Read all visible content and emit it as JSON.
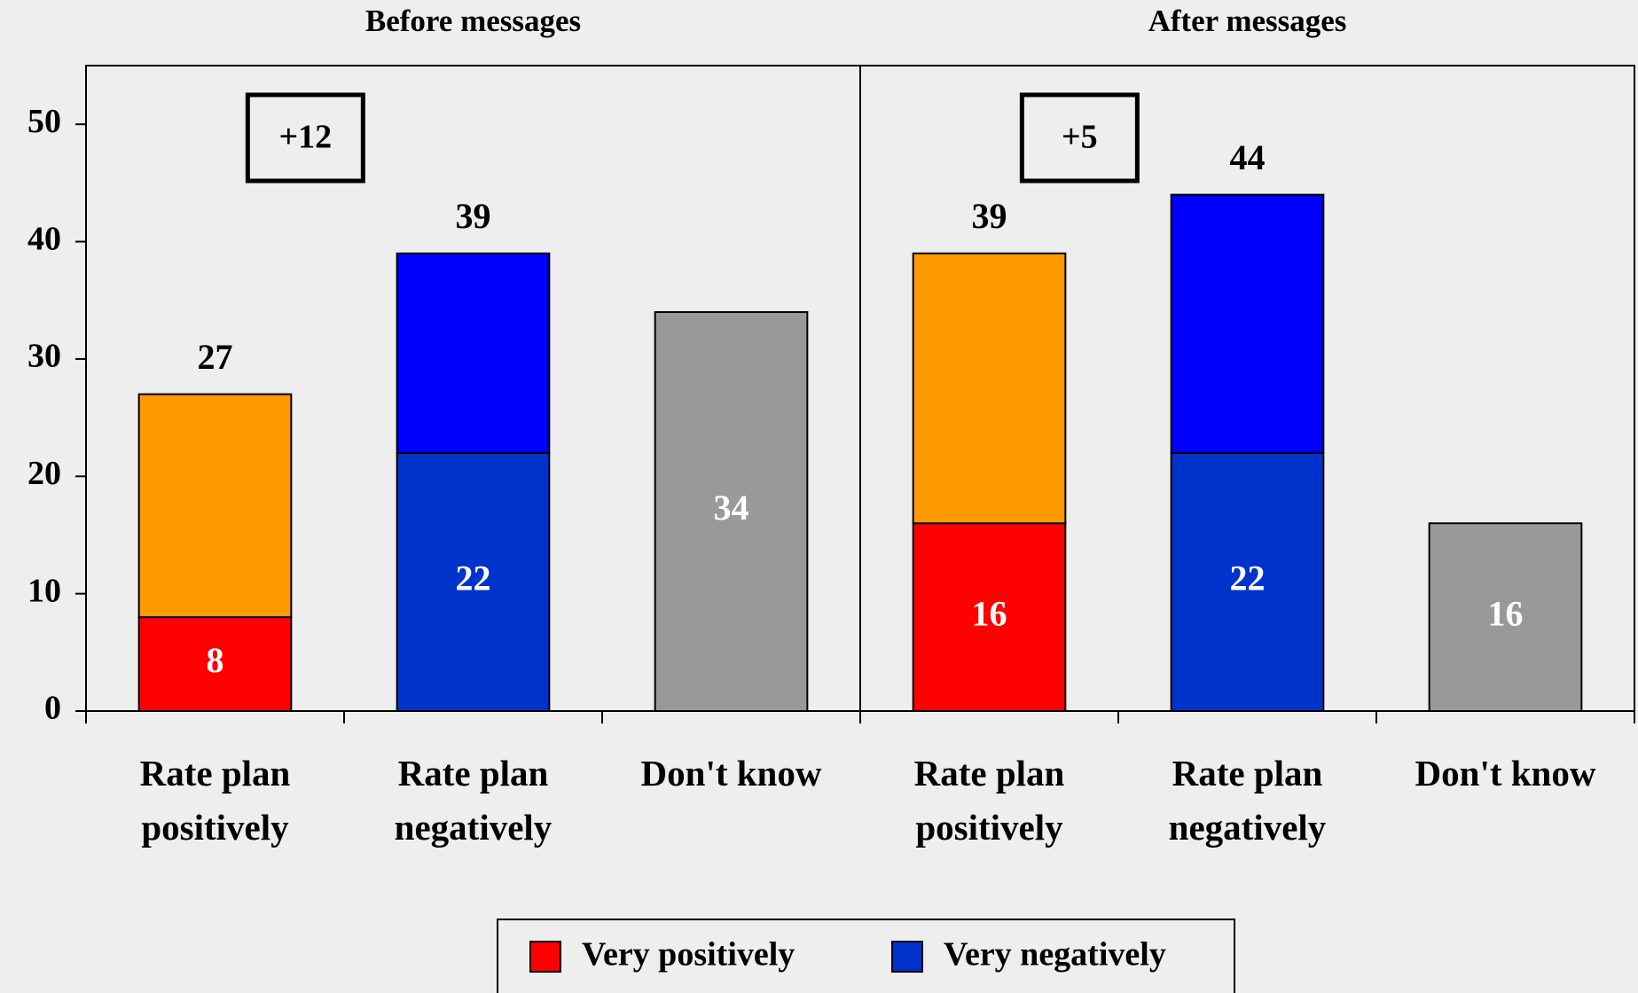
{
  "chart_data": {
    "type": "stacked-bar",
    "panels": [
      {
        "title": "Before messages",
        "annotation": "+12"
      },
      {
        "title": "After messages",
        "annotation": "+5"
      }
    ],
    "categories": [
      "Rate plan positively",
      "Rate plan negatively",
      "Don't know",
      "Rate plan positively",
      "Rate plan negatively",
      "Don't know"
    ],
    "series": [
      {
        "name": "Very positively",
        "color": "#ff0000",
        "values": [
          8,
          null,
          null,
          16,
          null,
          null
        ],
        "labels": true
      },
      {
        "name": "Very negatively",
        "color": "#0033cc",
        "values": [
          null,
          22,
          null,
          null,
          22,
          null
        ],
        "labels": true
      },
      {
        "color": "#ff9900",
        "values": [
          19,
          null,
          null,
          23,
          null,
          null
        ],
        "labels": false
      },
      {
        "color": "#0000ff",
        "values": [
          null,
          17,
          null,
          null,
          22,
          null
        ],
        "labels": false
      },
      {
        "color": "#999999",
        "values": [
          null,
          null,
          34,
          null,
          null,
          16
        ],
        "labels": true
      }
    ],
    "totals": [
      27,
      39,
      null,
      39,
      44,
      null
    ],
    "ylim": [
      0,
      55
    ],
    "yticks": [
      0,
      10,
      20,
      30,
      40,
      50
    ],
    "legend": "bottom"
  }
}
